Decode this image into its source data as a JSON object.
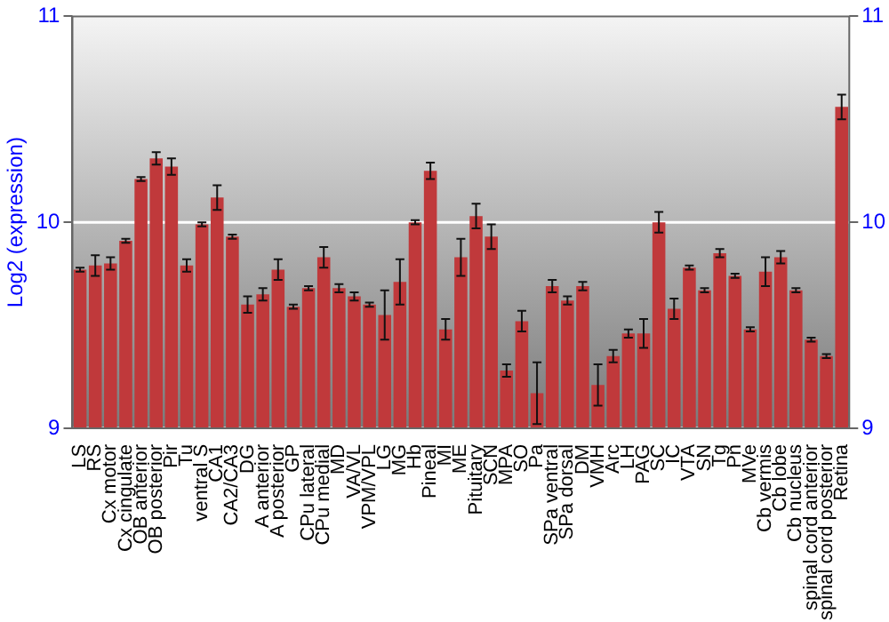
{
  "chart_data": {
    "type": "bar",
    "ylabel": "Log2 (expression)",
    "categories": [
      "LS",
      "RS",
      "Cx motor",
      "Cx cingulate",
      "OB anterior",
      "OB posterior",
      "Pir",
      "Tu",
      "ventral S",
      "CA1",
      "CA2/CA3",
      "DG",
      "A anterior",
      "A posterior",
      "GP",
      "CPu lateral",
      "CPu medial",
      "MD",
      "VA/VL",
      "VPM/VPL",
      "LG",
      "MG",
      "Hb",
      "Pineal",
      "MI",
      "ME",
      "Pituitary",
      "SCN",
      "MPA",
      "SO",
      "Pa",
      "SPa ventral",
      "SPa dorsal",
      "DM",
      "VMH",
      "Arc",
      "LH",
      "PAG",
      "SC",
      "IC",
      "VTA",
      "SN",
      "Tg",
      "Pn",
      "MVe",
      "Cb vermis",
      "Cb lobe",
      "Cb nucleus",
      "spinal cord anterior",
      "spinal cord posterior",
      "Retina"
    ],
    "values": [
      9.77,
      9.79,
      9.8,
      9.91,
      10.21,
      10.31,
      10.27,
      9.79,
      9.99,
      10.12,
      9.93,
      9.6,
      9.65,
      9.77,
      9.59,
      9.68,
      9.83,
      9.68,
      9.64,
      9.6,
      9.55,
      9.71,
      10.0,
      10.25,
      9.48,
      9.83,
      10.03,
      9.93,
      9.28,
      9.52,
      9.17,
      9.69,
      9.62,
      9.69,
      9.21,
      9.35,
      9.46,
      9.46,
      10.0,
      9.58,
      9.78,
      9.67,
      9.85,
      9.74,
      9.48,
      9.76,
      9.83,
      9.67,
      9.43,
      9.35,
      10.56
    ],
    "errors": [
      0.01,
      0.05,
      0.03,
      0.01,
      0.01,
      0.03,
      0.04,
      0.03,
      0.01,
      0.06,
      0.01,
      0.04,
      0.03,
      0.05,
      0.01,
      0.01,
      0.05,
      0.02,
      0.02,
      0.01,
      0.12,
      0.11,
      0.01,
      0.04,
      0.05,
      0.09,
      0.06,
      0.06,
      0.03,
      0.05,
      0.15,
      0.03,
      0.02,
      0.02,
      0.1,
      0.03,
      0.02,
      0.07,
      0.05,
      0.05,
      0.01,
      0.01,
      0.02,
      0.01,
      0.01,
      0.07,
      0.03,
      0.01,
      0.01,
      0.01,
      0.06
    ],
    "color": "#c0393b",
    "ylim": [
      9,
      11
    ],
    "yticks": [
      9,
      10,
      11
    ],
    "y2lim": [
      9,
      11
    ],
    "y2ticks": [
      9,
      10,
      11
    ],
    "grid": "y"
  }
}
